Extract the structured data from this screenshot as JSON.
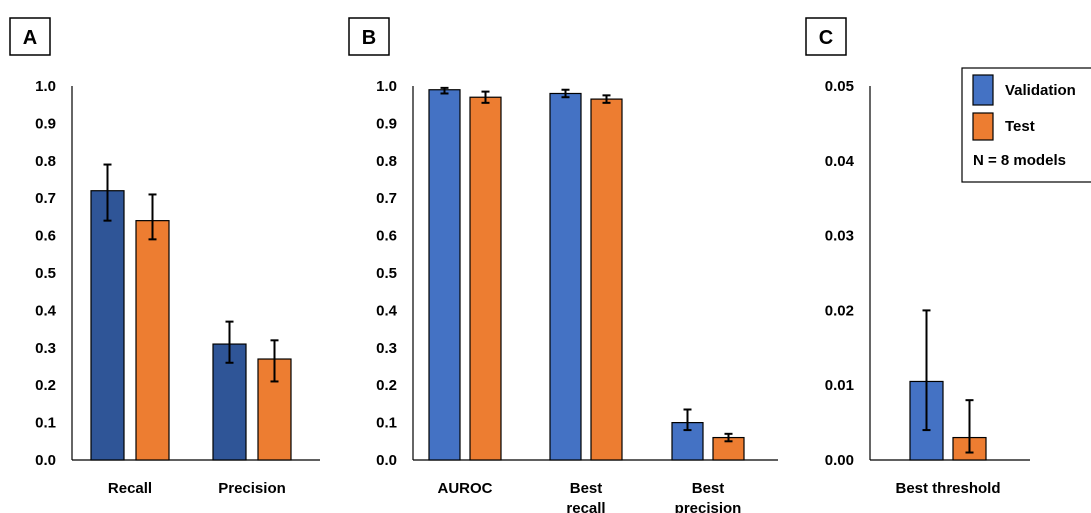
{
  "legend": {
    "items": [
      {
        "label": "Validation",
        "color": "#4472C4"
      },
      {
        "label": "Test",
        "color": "#ED7D31"
      }
    ],
    "note": "N = 8 models",
    "placement": "top-right"
  },
  "chart_data": [
    {
      "panel": "A",
      "type": "bar",
      "categories": [
        "Recall",
        "Precision"
      ],
      "ylim": [
        0,
        1.0
      ],
      "yticks": [
        "0.0",
        "0.1",
        "0.2",
        "0.3",
        "0.4",
        "0.5",
        "0.6",
        "0.7",
        "0.8",
        "0.9",
        "1.0"
      ],
      "grid": false,
      "series": [
        {
          "name": "Validation",
          "color": "#2F5597",
          "values": [
            0.72,
            0.31
          ],
          "err_low": [
            0.64,
            0.26
          ],
          "err_high": [
            0.79,
            0.37
          ]
        },
        {
          "name": "Test",
          "color": "#ED7D31",
          "values": [
            0.64,
            0.27
          ],
          "err_low": [
            0.59,
            0.21
          ],
          "err_high": [
            0.71,
            0.32
          ]
        }
      ]
    },
    {
      "panel": "B",
      "type": "bar",
      "categories": [
        [
          "AUROC"
        ],
        [
          "Best",
          "recall"
        ],
        [
          "Best",
          "precision"
        ]
      ],
      "ylim": [
        0,
        1.0
      ],
      "yticks": [
        "0.0",
        "0.1",
        "0.2",
        "0.3",
        "0.4",
        "0.5",
        "0.6",
        "0.7",
        "0.8",
        "0.9",
        "1.0"
      ],
      "grid": false,
      "series": [
        {
          "name": "Validation",
          "color": "#4472C4",
          "values": [
            0.99,
            0.98,
            0.1
          ],
          "err_low": [
            0.98,
            0.97,
            0.08
          ],
          "err_high": [
            0.995,
            0.99,
            0.135
          ]
        },
        {
          "name": "Test",
          "color": "#ED7D31",
          "values": [
            0.97,
            0.965,
            0.06
          ],
          "err_low": [
            0.955,
            0.955,
            0.05
          ],
          "err_high": [
            0.985,
            0.975,
            0.07
          ]
        }
      ]
    },
    {
      "panel": "C",
      "type": "bar",
      "categories": [
        "Best threshold"
      ],
      "ylim": [
        0,
        0.05
      ],
      "yticks": [
        "0.00",
        "0.01",
        "0.02",
        "0.03",
        "0.04",
        "0.05"
      ],
      "grid": false,
      "series": [
        {
          "name": "Validation",
          "color": "#4472C4",
          "values": [
            0.0105
          ],
          "err_low": [
            0.004
          ],
          "err_high": [
            0.02
          ]
        },
        {
          "name": "Test",
          "color": "#ED7D31",
          "values": [
            0.003
          ],
          "err_low": [
            0.001
          ],
          "err_high": [
            0.008
          ]
        }
      ]
    }
  ]
}
